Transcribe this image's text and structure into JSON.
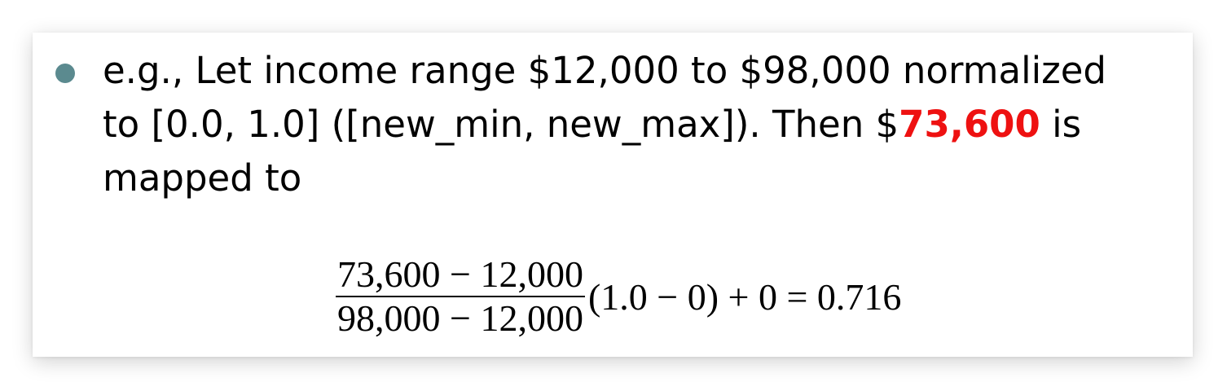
{
  "bullet": {
    "line1": "e.g., Let income range $12,000 to $98,000 normalized",
    "line2_prefix": "to [0.0, 1.0] ([new_min, new_max]).  Then $",
    "highlight_value": "73,600",
    "line2_suffix": " is",
    "line3": "mapped to"
  },
  "formula": {
    "numerator": "73,600 − 12,000",
    "denominator": "98,000 − 12,000",
    "rest": "(1.0 − 0) + 0 = 0.716"
  },
  "colors": {
    "bullet_dot": "#5b8a8f",
    "highlight": "#ee1111",
    "text": "#000000"
  }
}
